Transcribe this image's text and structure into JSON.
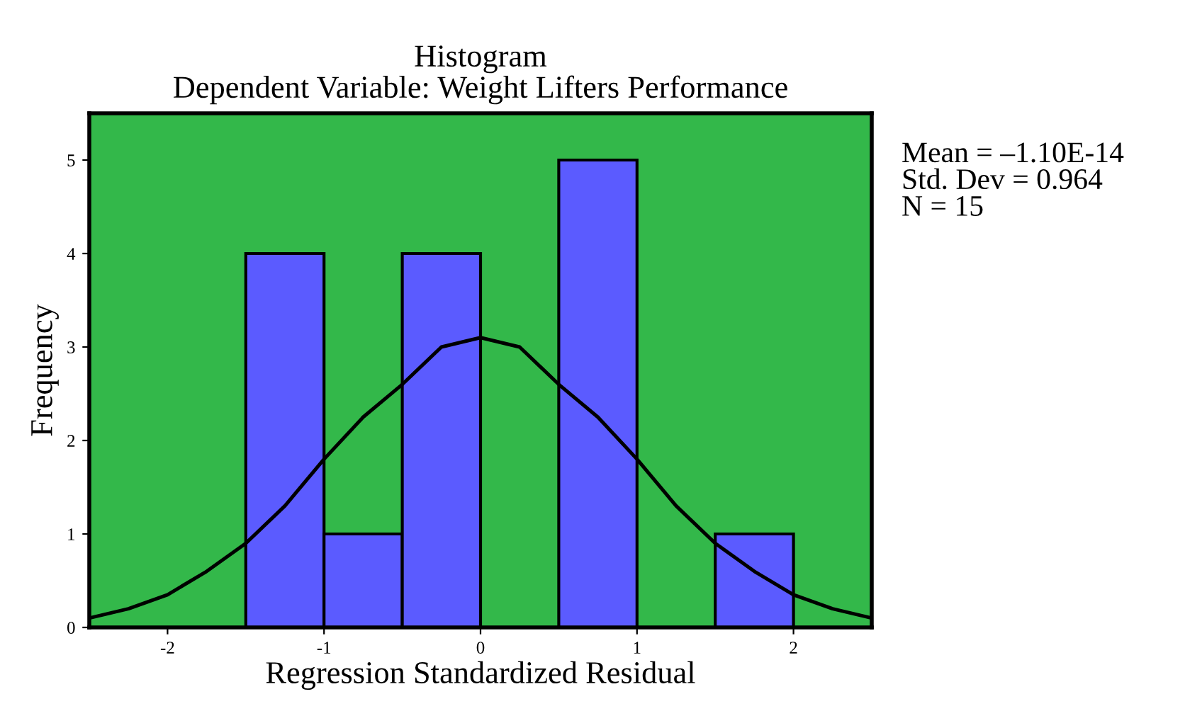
{
  "chart_data": {
    "type": "histogram",
    "title": "Histogram\nDependent Variable: Weight Lifters Performance",
    "xlabel": "Regression Standardized Residual",
    "ylabel": "Frequency",
    "bins": [
      -1.5,
      -1.0,
      -0.5,
      0,
      0.5,
      1.0,
      1.5,
      2.0
    ],
    "values": [
      4,
      1,
      4,
      0,
      5,
      0,
      1
    ],
    "color": "#5b5bff",
    "series": [
      {
        "type": "line",
        "color": "#000000",
        "x": [
          -2.5,
          -2.25,
          -2,
          -1.75,
          -1.5,
          -1.25,
          -1,
          -0.75,
          -0.5,
          -0.25,
          0,
          0.25,
          0.5,
          0.75,
          1,
          1.25,
          1.5,
          1.75,
          2,
          2.25,
          2.5
        ],
        "values": [
          0.1,
          0.2,
          0.35,
          0.6,
          0.9,
          1.3,
          1.8,
          2.25,
          2.6,
          3.0,
          3.1,
          3.0,
          2.6,
          2.25,
          1.8,
          1.3,
          0.9,
          0.6,
          0.35,
          0.2,
          0.1
        ]
      }
    ],
    "xlim": [
      -2.5,
      2.5
    ],
    "ylim": [
      0,
      5.5
    ],
    "xticks": [
      -2,
      -1,
      0,
      1,
      2
    ],
    "yticks": [
      0,
      1,
      2,
      3,
      4,
      5
    ],
    "grid": false,
    "annotations": [
      "Mean = –1.10E-14\nStd. Dev = 0.964\nN = 15"
    ]
  }
}
